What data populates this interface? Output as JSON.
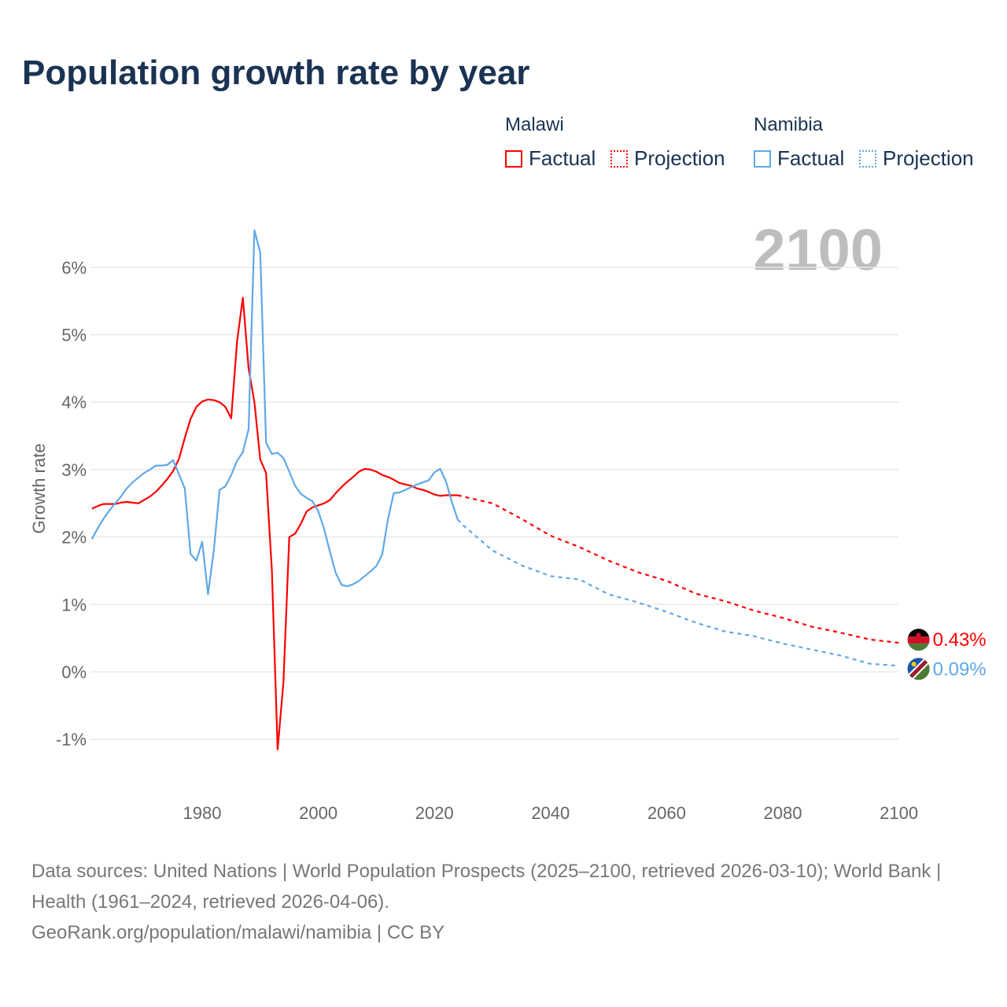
{
  "chart_data": {
    "type": "line",
    "title": "Population growth rate by year",
    "ylabel": "Growth rate",
    "xlabel": "",
    "xlim": [
      1960,
      2100
    ],
    "ylim": [
      -1.7,
      6.6
    ],
    "x_ticks": [
      1980,
      2000,
      2020,
      2040,
      2060,
      2080,
      2100
    ],
    "x_tick_labels": [
      "1980",
      "2000",
      "2020",
      "2040",
      "2060",
      "2080",
      "2100"
    ],
    "y_ticks": [
      -1,
      0,
      1,
      2,
      3,
      4,
      5,
      6
    ],
    "y_tick_labels": [
      "-1%",
      "0%",
      "1%",
      "2%",
      "3%",
      "4%",
      "5%",
      "6%"
    ],
    "grid": true,
    "current_year": "2100",
    "legend": {
      "placement": "top-right",
      "groups": [
        {
          "country": "Malawi",
          "factual": "Factual",
          "projection": "Projection"
        },
        {
          "country": "Namibia",
          "factual": "Factual",
          "projection": "Projection"
        }
      ]
    },
    "series": [
      {
        "name": "Malawi",
        "color": "#ff0000",
        "end_label": "0.43%",
        "factual": {
          "x_start": 1961,
          "values": [
            2.42,
            2.46,
            2.49,
            2.49,
            2.49,
            2.51,
            2.52,
            2.51,
            2.5,
            2.55,
            2.6,
            2.67,
            2.76,
            2.86,
            2.98,
            3.16,
            3.47,
            3.75,
            3.93,
            4.01,
            4.04,
            4.03,
            4.0,
            3.93,
            3.76,
            4.9,
            5.55,
            4.5,
            4.0,
            3.15,
            2.95,
            1.5,
            -1.15,
            -0.15,
            2.0,
            2.05,
            2.2,
            2.38,
            2.44,
            2.47,
            2.5,
            2.55,
            2.65,
            2.74,
            2.82,
            2.89,
            2.97,
            3.01,
            3.0,
            2.97,
            2.92,
            2.89,
            2.85,
            2.8,
            2.78,
            2.76,
            2.72,
            2.7,
            2.67,
            2.63,
            2.61,
            2.62,
            2.62,
            2.62
          ]
        },
        "projection": {
          "x": [
            2024,
            2030,
            2035,
            2040,
            2045,
            2050,
            2055,
            2060,
            2065,
            2070,
            2075,
            2080,
            2085,
            2090,
            2095,
            2100
          ],
          "values": [
            2.62,
            2.5,
            2.27,
            2.02,
            1.85,
            1.65,
            1.48,
            1.35,
            1.16,
            1.05,
            0.91,
            0.8,
            0.67,
            0.58,
            0.48,
            0.43
          ]
        }
      },
      {
        "name": "Namibia",
        "color": "#5fa8e8",
        "end_label": "0.09%",
        "factual": {
          "x_start": 1961,
          "values": [
            1.97,
            2.13,
            2.27,
            2.39,
            2.5,
            2.6,
            2.72,
            2.81,
            2.88,
            2.95,
            3.0,
            3.06,
            3.06,
            3.07,
            3.14,
            2.93,
            2.72,
            1.75,
            1.65,
            1.93,
            1.15,
            1.8,
            2.7,
            2.75,
            2.92,
            3.13,
            3.26,
            3.6,
            6.55,
            6.22,
            3.4,
            3.23,
            3.25,
            3.17,
            2.97,
            2.76,
            2.64,
            2.58,
            2.53,
            2.38,
            2.12,
            1.78,
            1.47,
            1.29,
            1.27,
            1.3,
            1.35,
            1.42,
            1.49,
            1.57,
            1.74,
            2.27,
            2.65,
            2.66,
            2.7,
            2.74,
            2.78,
            2.81,
            2.84,
            2.96,
            3.01,
            2.82,
            2.52,
            2.26
          ]
        },
        "projection": {
          "x": [
            2024,
            2025,
            2030,
            2035,
            2040,
            2045,
            2050,
            2055,
            2060,
            2065,
            2070,
            2075,
            2080,
            2085,
            2090,
            2095,
            2100
          ],
          "values": [
            2.26,
            2.17,
            1.8,
            1.58,
            1.42,
            1.37,
            1.15,
            1.03,
            0.89,
            0.73,
            0.6,
            0.53,
            0.42,
            0.33,
            0.24,
            0.12,
            0.09
          ]
        }
      }
    ]
  },
  "footer": {
    "sources": "Data sources: United Nations | World Population Prospects (2025–2100, retrieved 2026-03-10); World Bank | Health (1961–2024, retrieved 2026-04-06).",
    "credit": "GeoRank.org/population/malawi/namibia | CC BY"
  }
}
